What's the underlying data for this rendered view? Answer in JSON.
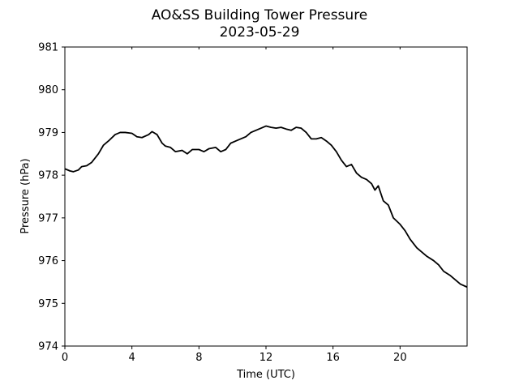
{
  "chart_data": {
    "type": "line",
    "title": "AO&SS Building Tower Pressure",
    "subtitle": "2023-05-29",
    "xlabel": "Time (UTC)",
    "ylabel": "Pressure (hPa)",
    "xlim": [
      0,
      24
    ],
    "ylim": [
      974,
      981
    ],
    "xticks": [
      0,
      4,
      8,
      12,
      16,
      20
    ],
    "yticks": [
      974,
      975,
      976,
      977,
      978,
      979,
      980,
      981
    ],
    "grid": false,
    "line_color": "#000000",
    "series": [
      {
        "x": [
          0,
          0.3,
          0.5,
          0.8,
          1.0,
          1.3,
          1.6,
          2.0,
          2.3,
          2.6,
          3.0,
          3.3,
          3.6,
          4.0,
          4.3,
          4.6,
          5.0,
          5.2,
          5.5,
          5.8,
          6.0,
          6.3,
          6.6,
          7.0,
          7.3,
          7.6,
          8.0,
          8.3,
          8.6,
          9.0,
          9.3,
          9.6,
          9.9,
          10.2,
          10.5,
          10.8,
          11.1,
          11.4,
          11.7,
          12.0,
          12.3,
          12.6,
          12.9,
          13.2,
          13.5,
          13.8,
          14.1,
          14.4,
          14.7,
          15.0,
          15.3,
          15.6,
          15.9,
          16.2,
          16.5,
          16.8,
          17.1,
          17.4,
          17.7,
          18.0,
          18.3,
          18.5,
          18.7,
          19.0,
          19.3,
          19.6,
          20.0,
          20.3,
          20.6,
          21.0,
          21.3,
          21.6,
          22.0,
          22.3,
          22.6,
          23.0,
          23.3,
          23.6,
          24.0
        ],
        "y": [
          978.15,
          978.1,
          978.08,
          978.12,
          978.2,
          978.22,
          978.3,
          978.5,
          978.7,
          978.8,
          978.95,
          979.0,
          979.0,
          978.98,
          978.9,
          978.88,
          978.95,
          979.02,
          978.95,
          978.75,
          978.68,
          978.65,
          978.55,
          978.58,
          978.5,
          978.6,
          978.6,
          978.55,
          978.62,
          978.65,
          978.55,
          978.6,
          978.75,
          978.8,
          978.85,
          978.9,
          979.0,
          979.05,
          979.1,
          979.15,
          979.12,
          979.1,
          979.12,
          979.08,
          979.05,
          979.12,
          979.1,
          979.0,
          978.85,
          978.85,
          978.88,
          978.8,
          978.7,
          978.55,
          978.35,
          978.2,
          978.25,
          978.05,
          977.95,
          977.9,
          977.8,
          977.65,
          977.75,
          977.4,
          977.3,
          977.0,
          976.85,
          976.7,
          976.5,
          976.3,
          976.2,
          976.1,
          976.0,
          975.9,
          975.75,
          975.65,
          975.55,
          975.45,
          975.38
        ]
      }
    ]
  }
}
